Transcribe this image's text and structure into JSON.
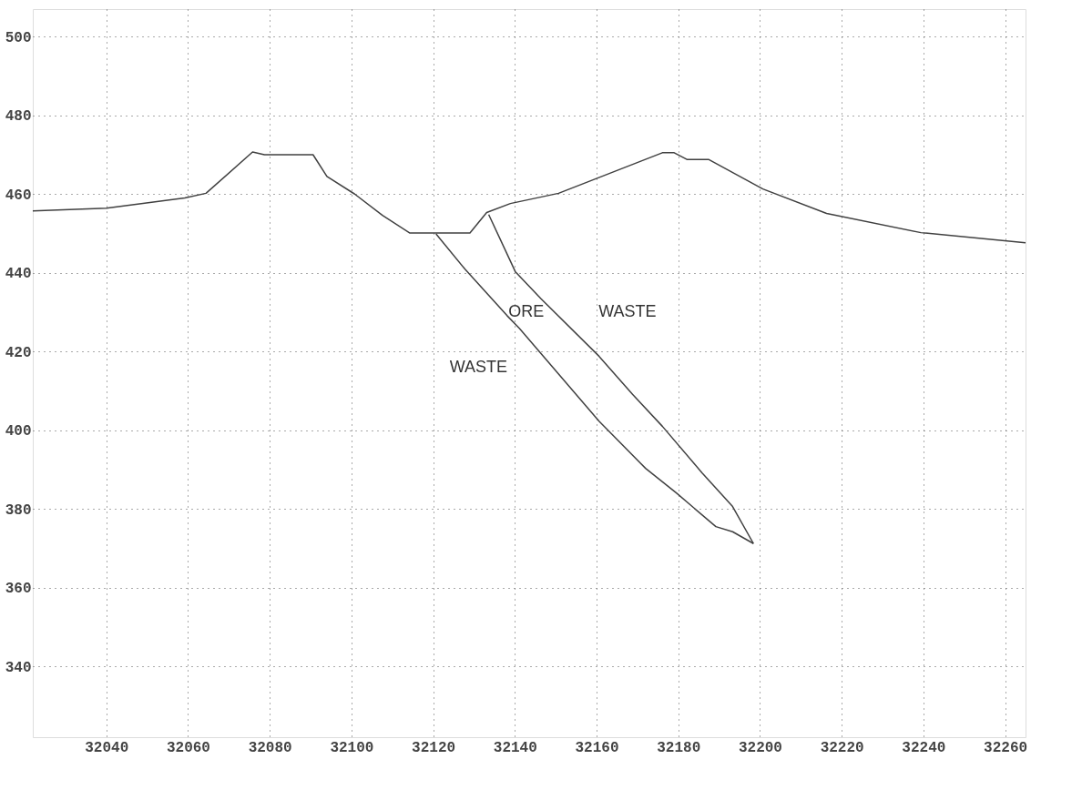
{
  "chart_data": {
    "type": "line",
    "xlim": [
      32022,
      32265
    ],
    "ylim": [
      322,
      507
    ],
    "xticks": [
      32040,
      32060,
      32080,
      32100,
      32120,
      32140,
      32160,
      32180,
      32200,
      32220,
      32240,
      32260
    ],
    "yticks": [
      340,
      360,
      380,
      400,
      420,
      440,
      460,
      480,
      500
    ],
    "grid": true,
    "marker": "none",
    "line_style": "solid",
    "series": [
      {
        "color": "#404040",
        "x": [
          32022.0,
          32040.0,
          32059.2,
          32064.4,
          32075.8,
          32078.7,
          32090.6,
          32094.0,
          32100.8,
          32107.6,
          32114.3,
          32129.0,
          32133.1,
          32138.9,
          32150.7,
          32176.1,
          32179.0,
          32182.1,
          32187.4,
          32200.7,
          32216.3,
          32239.4,
          32265.0
        ],
        "values": [
          455.7,
          456.4,
          459.0,
          460.2,
          470.7,
          470.0,
          470.0,
          464.5,
          460.0,
          454.6,
          450.1,
          450.1,
          455.3,
          457.6,
          460.2,
          470.5,
          470.5,
          468.8,
          468.8,
          461.3,
          455.1,
          450.2,
          447.6
        ]
      },
      {
        "color": "#404040",
        "x": [
          32120.7,
          32127.8,
          32138.1,
          32141.1,
          32160.6,
          32172.0,
          32179.6,
          32189.2,
          32193.3,
          32198.4
        ],
        "values": [
          449.9,
          440.9,
          429.1,
          425.9,
          402.3,
          390.3,
          384.0,
          375.5,
          374.2,
          371.2
        ]
      },
      {
        "color": "#404040",
        "x": [
          32133.6,
          32140.1,
          32146.4,
          32160.6,
          32168.8,
          32176.1,
          32185.8,
          32193.3,
          32198.4
        ],
        "values": [
          454.8,
          440.3,
          433.4,
          418.8,
          409.1,
          401.0,
          389.2,
          380.6,
          371.2
        ]
      }
    ],
    "annotations": [
      "ORE",
      "WASTE",
      "WASTE"
    ]
  }
}
